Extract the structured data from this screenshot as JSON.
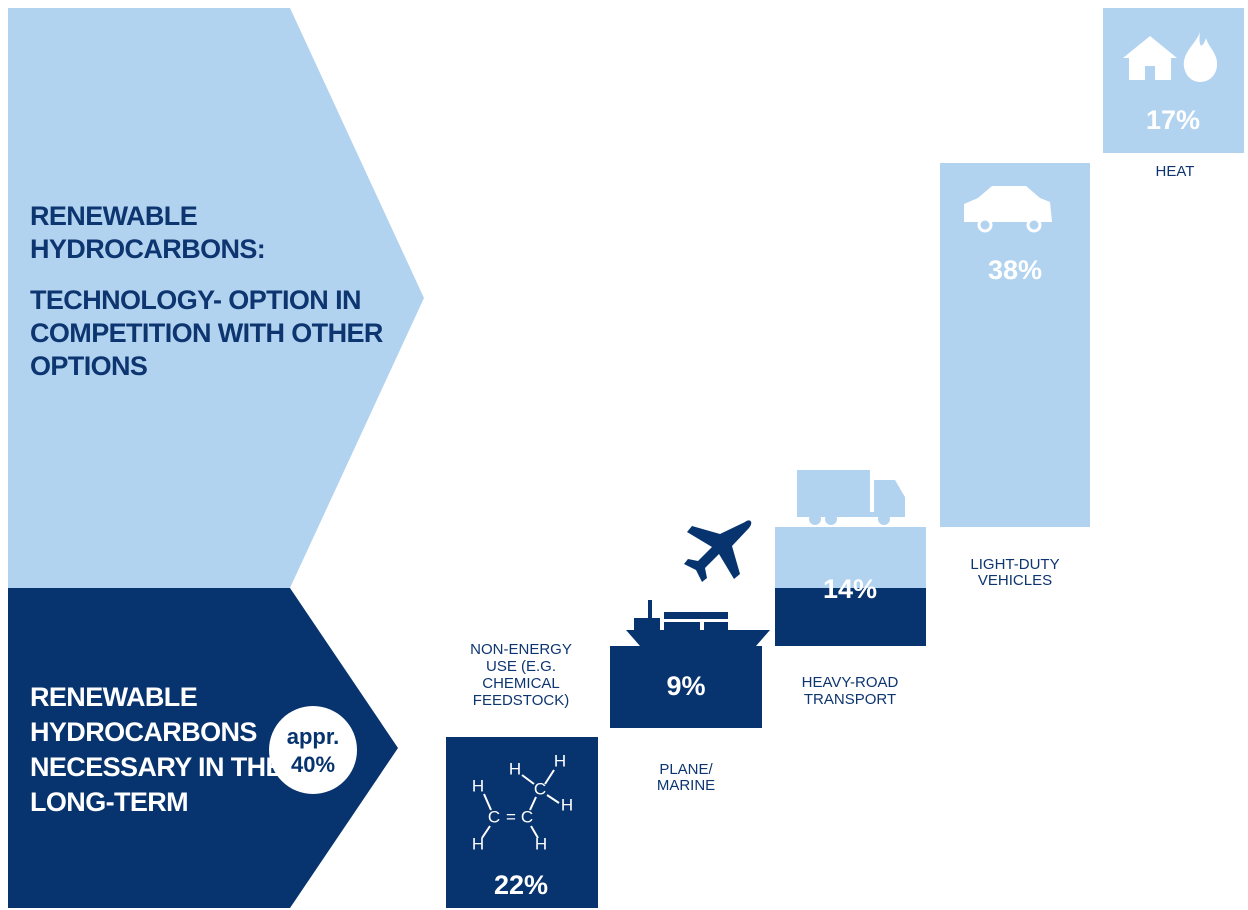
{
  "left_panel": {
    "top_text": [
      "RENEWABLE",
      "HYDROCARBONS:",
      "TECHNOLOGY- OPTION IN",
      "COMPETITION WITH OTHER",
      "OPTIONS"
    ],
    "bottom_text": [
      "RENEWABLE",
      "HYDROCARBONS",
      "NECESSARY IN THE",
      "LONG-TERM"
    ],
    "badge": [
      "appr.",
      "40%"
    ]
  },
  "segments": [
    {
      "label": [
        "NON-ENERGY",
        "USE (E.G.",
        "CHEMICAL",
        "FEEDSTOCK)"
      ],
      "value": "22%"
    },
    {
      "label": [
        "PLANE/",
        "MARINE"
      ],
      "value": "9%"
    },
    {
      "label": [
        "HEAVY-ROAD",
        "TRANSPORT"
      ],
      "value": "14%"
    },
    {
      "label": [
        "LIGHT-DUTY",
        "VEHICLES"
      ],
      "value": "38%"
    },
    {
      "label": [
        "HEAT"
      ],
      "value": "17%"
    }
  ],
  "molecule": [
    "H",
    "H",
    "H",
    "C",
    "H",
    "C",
    "=",
    "C",
    "H",
    "H"
  ]
}
